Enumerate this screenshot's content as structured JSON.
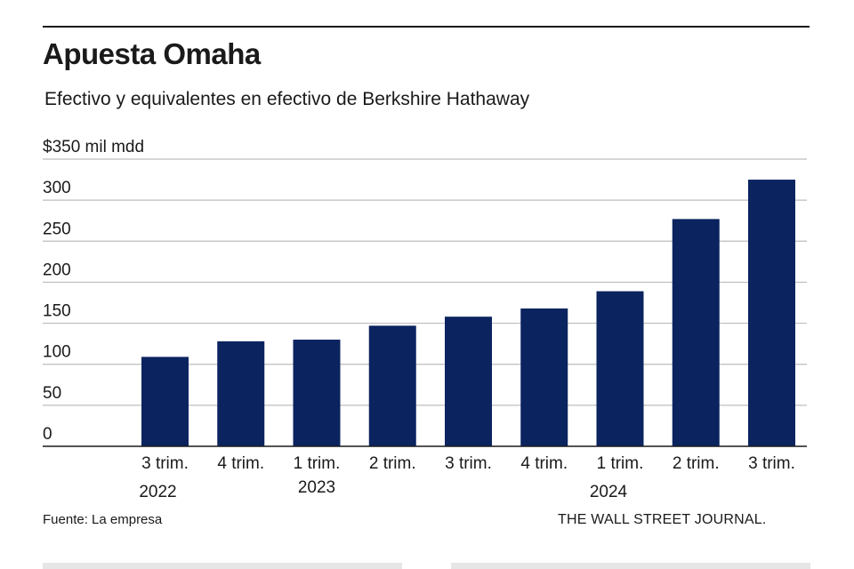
{
  "header": {
    "title": "Apuesta Omaha",
    "subtitle": "Efectivo y equivalentes en efectivo de Berkshire Hathaway"
  },
  "footer": {
    "source": "Fuente: La empresa",
    "publisher": "THE WALL STREET JOURNAL."
  },
  "colors": {
    "bar": "#0b2460",
    "gridline": "#bdbdbd",
    "baseline": "#1a1a1a"
  },
  "chart_data": {
    "type": "bar",
    "title": "Apuesta Omaha",
    "subtitle": "Efectivo y equivalentes en efectivo de Berkshire Hathaway",
    "ylabel": "",
    "xlabel": "",
    "ylim": [
      0,
      350
    ],
    "yticks": [
      0,
      50,
      100,
      150,
      200,
      250,
      300,
      350
    ],
    "ytick_labels": [
      "0",
      "50",
      "100",
      "150",
      "200",
      "250",
      "300",
      "$350 mil mdd"
    ],
    "grid": true,
    "categories": [
      "3 trim.",
      "4 trim.",
      "1 trim.",
      "2 trim.",
      "3 trim.",
      "4 trim.",
      "1 trim.",
      "2 trim.",
      "3 trim."
    ],
    "values": [
      109,
      128,
      130,
      147,
      158,
      168,
      189,
      277,
      325
    ],
    "year_labels": [
      {
        "label": "2022",
        "category_index": 0
      },
      {
        "label": "2023",
        "category_index": 2
      },
      {
        "label": "2024",
        "category_index": 6
      }
    ]
  }
}
